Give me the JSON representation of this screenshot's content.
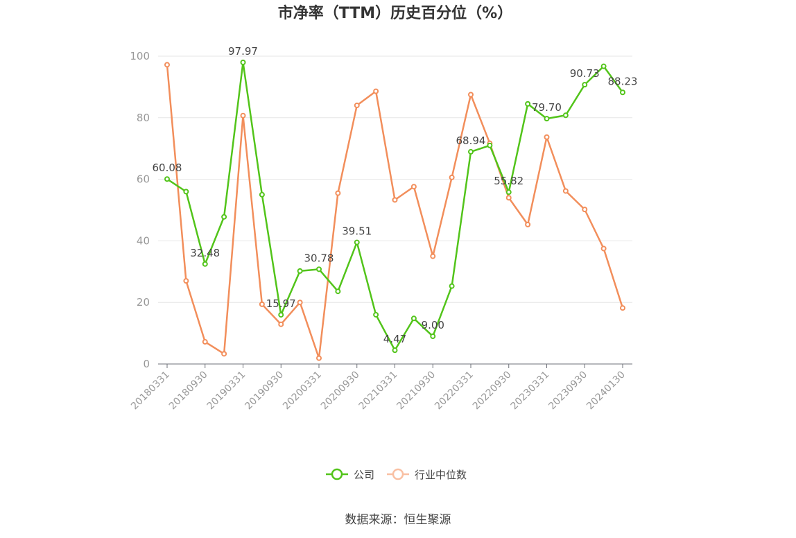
{
  "chart_data": {
    "type": "line",
    "title": "市净率（TTM）历史百分位（%）",
    "source": "数据来源：恒生聚源",
    "ylim": [
      0,
      100
    ],
    "yticks": [
      0,
      20,
      40,
      60,
      80,
      100
    ],
    "grid": true,
    "legend_position": "bottom-center",
    "x": [
      "20180331",
      "20180630",
      "20180930",
      "20181231",
      "20190331",
      "20190630",
      "20190930",
      "20191231",
      "20200331",
      "20200630",
      "20200930",
      "20201231",
      "20210331",
      "20210630",
      "20210930",
      "20211231",
      "20220331",
      "20220630",
      "20220930",
      "20221231",
      "20230331",
      "20230630",
      "20230930",
      "20231231",
      "20240130"
    ],
    "x_tick_labels": [
      "20180331",
      "20180930",
      "20190331",
      "20190930",
      "20200331",
      "20200930",
      "20210331",
      "20210930",
      "20220331",
      "20220930",
      "20230331",
      "20230930",
      "20240130"
    ],
    "series": [
      {
        "name": "公司",
        "color": "#52c41a",
        "values": [
          60.08,
          56.0,
          32.48,
          47.8,
          97.97,
          55.0,
          15.97,
          30.2,
          30.78,
          23.6,
          39.51,
          16.0,
          4.47,
          14.8,
          9.0,
          25.3,
          68.94,
          71.0,
          55.82,
          84.5,
          79.7,
          80.8,
          90.73,
          96.7,
          88.23
        ],
        "labels": {
          "0": "60.08",
          "2": "32.48",
          "4": "97.97",
          "6": "15.97",
          "8": "30.78",
          "10": "39.51",
          "12": "4.47",
          "14": "9.00",
          "16": "68.94",
          "18": "55.82",
          "20": "79.70",
          "22": "90.73",
          "24": "88.23"
        }
      },
      {
        "name": "行业中位数",
        "color": "#f28e5b",
        "values": [
          97.2,
          27.0,
          7.2,
          3.3,
          80.7,
          19.4,
          12.9,
          20.0,
          1.9,
          55.5,
          84.0,
          88.6,
          53.3,
          57.6,
          35.0,
          60.6,
          87.5,
          71.7,
          54.0,
          45.3,
          73.7,
          56.2,
          50.2,
          37.5,
          18.2
        ]
      }
    ]
  }
}
